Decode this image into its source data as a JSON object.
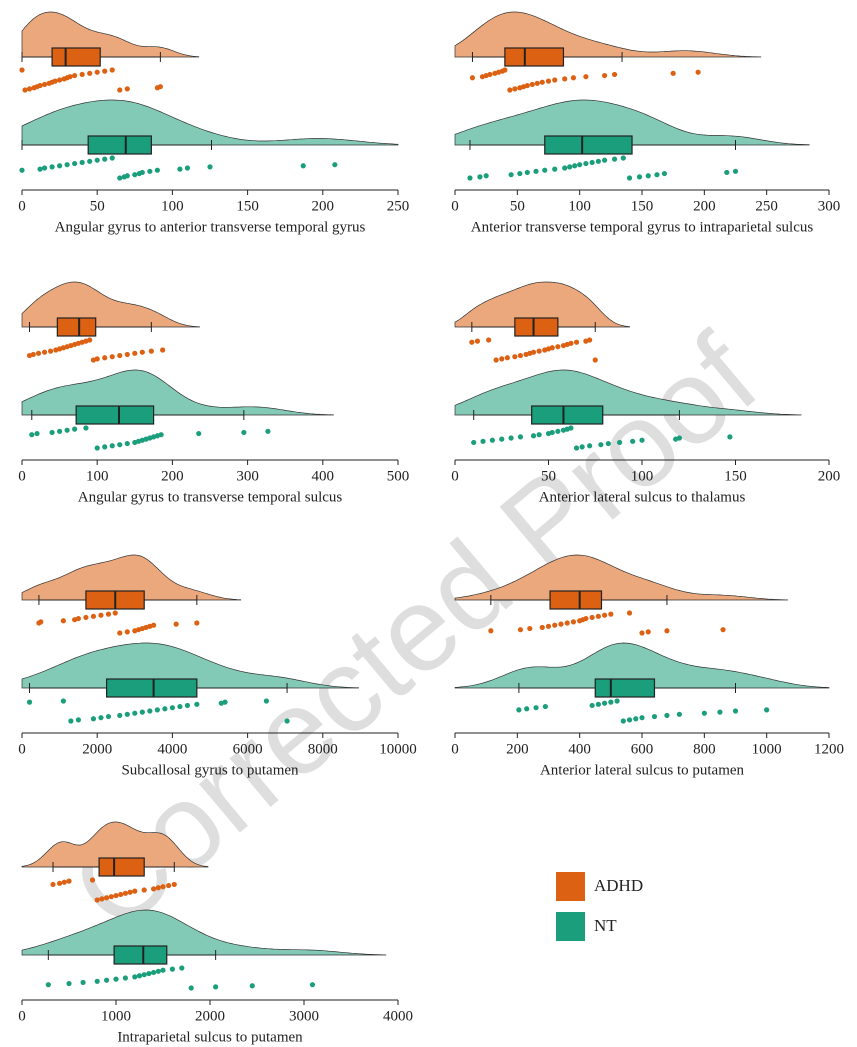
{
  "chart_data": [
    {
      "type": "raincloud",
      "xlabel": "Angular gyrus to anterior transverse temporal gyrus",
      "xlim": [
        0,
        250
      ],
      "xticks": [
        0,
        50,
        100,
        150,
        200,
        250
      ],
      "series": [
        {
          "name": "ADHD",
          "color": "#dd6113",
          "min": 0,
          "q1": 20,
          "median": 29,
          "q3": 52,
          "max": 92,
          "points": [
            0,
            2,
            5,
            8,
            10,
            12,
            15,
            18,
            20,
            22,
            25,
            28,
            30,
            32,
            35,
            40,
            45,
            50,
            55,
            60,
            65,
            70,
            90,
            92
          ]
        },
        {
          "name": "NT",
          "color": "#1b9e7b",
          "min": 0,
          "q1": 44,
          "median": 69,
          "q3": 86,
          "max": 126,
          "points": [
            0,
            12,
            15,
            20,
            25,
            30,
            35,
            40,
            45,
            50,
            55,
            60,
            65,
            68,
            70,
            75,
            78,
            80,
            85,
            90,
            105,
            110,
            125,
            187,
            208
          ]
        }
      ]
    },
    {
      "type": "raincloud",
      "xlabel": "Anterior transverse temporal gyrus to intraparietal sulcus",
      "xlim": [
        0,
        300
      ],
      "xticks": [
        0,
        50,
        100,
        150,
        200,
        250,
        300
      ],
      "series": [
        {
          "name": "ADHD",
          "color": "#dd6113",
          "min": 14,
          "q1": 40,
          "median": 56,
          "q3": 87,
          "max": 134,
          "points": [
            14,
            22,
            25,
            28,
            32,
            35,
            38,
            40,
            44,
            48,
            52,
            55,
            58,
            62,
            66,
            70,
            75,
            80,
            88,
            95,
            105,
            120,
            128,
            175,
            195
          ]
        },
        {
          "name": "NT",
          "color": "#1b9e7b",
          "min": 12,
          "q1": 72,
          "median": 102,
          "q3": 142,
          "max": 225,
          "points": [
            12,
            20,
            25,
            45,
            52,
            58,
            65,
            72,
            80,
            88,
            92,
            96,
            100,
            105,
            110,
            115,
            120,
            128,
            135,
            140,
            148,
            155,
            162,
            168,
            218,
            225
          ]
        }
      ]
    },
    {
      "type": "raincloud",
      "xlabel": "Angular gyrus to transverse temporal sulcus",
      "xlim": [
        0,
        500
      ],
      "xticks": [
        0,
        100,
        200,
        300,
        400,
        500
      ],
      "series": [
        {
          "name": "ADHD",
          "color": "#dd6113",
          "min": 10,
          "q1": 47,
          "median": 76,
          "q3": 98,
          "max": 172,
          "points": [
            10,
            15,
            22,
            30,
            38,
            45,
            50,
            55,
            60,
            65,
            70,
            75,
            80,
            85,
            90,
            95,
            100,
            110,
            120,
            130,
            140,
            150,
            160,
            172,
            187
          ]
        },
        {
          "name": "NT",
          "color": "#1b9e7b",
          "min": 13,
          "q1": 72,
          "median": 129,
          "q3": 175,
          "max": 295,
          "points": [
            13,
            20,
            40,
            50,
            60,
            70,
            85,
            100,
            110,
            120,
            130,
            140,
            150,
            155,
            160,
            165,
            170,
            175,
            180,
            185,
            235,
            295,
            327
          ]
        }
      ]
    },
    {
      "type": "raincloud",
      "xlabel": "Anterior lateral sulcus to thalamus",
      "xlim": [
        0,
        200
      ],
      "xticks": [
        0,
        50,
        100,
        150,
        200
      ],
      "series": [
        {
          "name": "ADHD",
          "color": "#dd6113",
          "min": 9,
          "q1": 32,
          "median": 42,
          "q3": 55,
          "max": 75,
          "points": [
            9,
            12,
            18,
            22,
            25,
            28,
            32,
            35,
            38,
            40,
            42,
            45,
            48,
            50,
            52,
            55,
            58,
            60,
            62,
            65,
            70,
            72,
            75
          ]
        },
        {
          "name": "NT",
          "color": "#1b9e7b",
          "min": 10,
          "q1": 41,
          "median": 58,
          "q3": 79,
          "max": 120,
          "points": [
            10,
            15,
            20,
            25,
            30,
            35,
            42,
            45,
            50,
            52,
            55,
            58,
            60,
            62,
            65,
            68,
            72,
            78,
            82,
            88,
            95,
            100,
            118,
            120,
            147
          ]
        }
      ]
    },
    {
      "type": "raincloud",
      "xlabel": "Subcallosal gyrus to putamen",
      "xlim": [
        0,
        10000
      ],
      "xticks": [
        0,
        2000,
        4000,
        6000,
        8000,
        10000
      ],
      "series": [
        {
          "name": "ADHD",
          "color": "#dd6113",
          "min": 450,
          "q1": 1700,
          "median": 2480,
          "q3": 3250,
          "max": 4650,
          "points": [
            450,
            500,
            1100,
            1400,
            1500,
            1700,
            1900,
            2100,
            2300,
            2480,
            2600,
            2800,
            3000,
            3100,
            3200,
            3300,
            3400,
            3500,
            4100,
            4650
          ]
        },
        {
          "name": "NT",
          "color": "#1b9e7b",
          "min": 200,
          "q1": 2250,
          "median": 3500,
          "q3": 4650,
          "max": 7050,
          "points": [
            200,
            1100,
            1300,
            1500,
            1900,
            2100,
            2300,
            2600,
            2800,
            3000,
            3200,
            3400,
            3600,
            3800,
            4000,
            4200,
            4400,
            4650,
            5300,
            5400,
            6500,
            7050
          ]
        }
      ]
    },
    {
      "type": "raincloud",
      "xlabel": "Anterior lateral sulcus to putamen",
      "xlim": [
        0,
        1200
      ],
      "xticks": [
        0,
        200,
        400,
        600,
        800,
        1000,
        1200
      ],
      "series": [
        {
          "name": "ADHD",
          "color": "#dd6113",
          "min": 115,
          "q1": 305,
          "median": 400,
          "q3": 470,
          "max": 680,
          "points": [
            115,
            210,
            240,
            280,
            300,
            320,
            340,
            360,
            380,
            400,
            410,
            420,
            440,
            460,
            480,
            500,
            560,
            600,
            620,
            680,
            860
          ]
        },
        {
          "name": "NT",
          "color": "#1b9e7b",
          "min": 205,
          "q1": 450,
          "median": 500,
          "q3": 640,
          "max": 900,
          "points": [
            205,
            230,
            260,
            290,
            440,
            460,
            480,
            500,
            520,
            540,
            560,
            580,
            600,
            640,
            680,
            720,
            800,
            850,
            900,
            1000
          ]
        }
      ]
    },
    {
      "type": "raincloud",
      "xlabel": "Intraparietal sulcus to putamen",
      "xlim": [
        0,
        4000
      ],
      "xticks": [
        0,
        1000,
        2000,
        3000,
        4000
      ],
      "series": [
        {
          "name": "ADHD",
          "color": "#dd6113",
          "min": 330,
          "q1": 820,
          "median": 980,
          "q3": 1300,
          "max": 1620,
          "points": [
            330,
            400,
            450,
            500,
            750,
            800,
            850,
            900,
            950,
            1000,
            1050,
            1100,
            1150,
            1200,
            1300,
            1400,
            1450,
            1500,
            1560,
            1620
          ]
        },
        {
          "name": "NT",
          "color": "#1b9e7b",
          "min": 280,
          "q1": 980,
          "median": 1290,
          "q3": 1540,
          "max": 2060,
          "points": [
            280,
            500,
            650,
            800,
            900,
            1000,
            1100,
            1200,
            1250,
            1300,
            1350,
            1400,
            1450,
            1500,
            1600,
            1700,
            1800,
            2060,
            2450,
            3090
          ]
        }
      ]
    }
  ],
  "watermark": "Corrected Proof"
}
